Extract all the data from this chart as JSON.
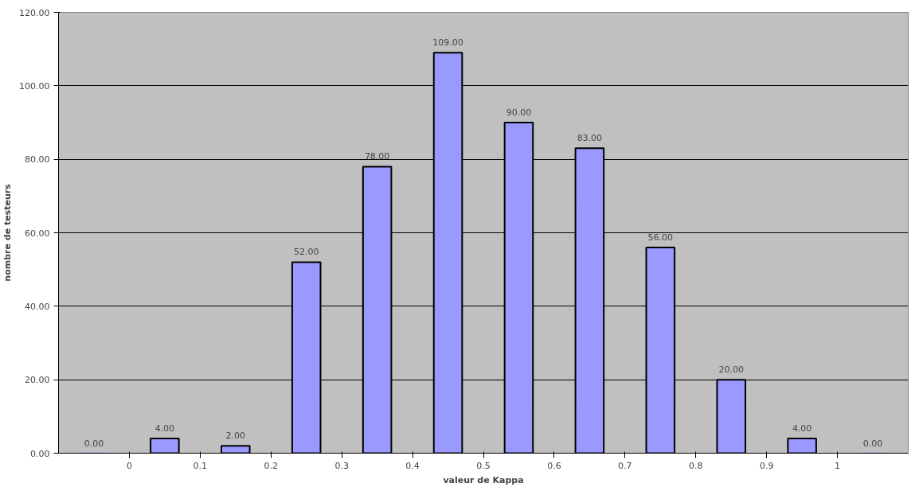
{
  "chart_data": {
    "type": "histogram",
    "xlabel": "valeur de Kappa",
    "ylabel": "nombre de testeurs",
    "bins": [
      -0.1,
      0,
      0.1,
      0.2,
      0.3,
      0.4,
      0.5,
      0.6,
      0.7,
      0.8,
      0.9,
      1,
      1.1
    ],
    "values": [
      0,
      4,
      2,
      52,
      78,
      109,
      90,
      83,
      56,
      20,
      4,
      0
    ],
    "value_labels": [
      "0.00",
      "4.00",
      "2.00",
      "52.00",
      "78.00",
      "109.00",
      "90.00",
      "83.00",
      "56.00",
      "20.00",
      "4.00",
      "0.00"
    ],
    "color": "#9999ff",
    "xlim": [
      -0.1,
      1.1
    ],
    "xticks": [
      0,
      0.1,
      0.2,
      0.3,
      0.4,
      0.5,
      0.6,
      0.7,
      0.8,
      0.9,
      1
    ],
    "ylim": [
      0,
      120
    ],
    "yticks": [
      {
        "value": 0,
        "label": "0.00"
      },
      {
        "value": 20,
        "label": "20.00"
      },
      {
        "value": 40,
        "label": "40.00"
      },
      {
        "value": 60,
        "label": "60.00"
      },
      {
        "value": 80,
        "label": "80.00"
      },
      {
        "value": 100,
        "label": "100.00"
      },
      {
        "value": 120,
        "label": "120.00"
      }
    ],
    "grid": "y"
  }
}
